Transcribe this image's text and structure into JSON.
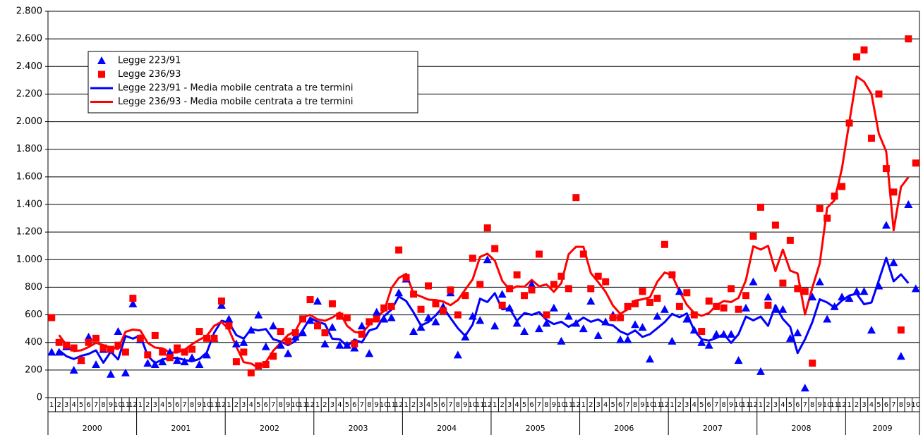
{
  "chart_data": {
    "type": "line",
    "categories": [
      "1",
      "2",
      "3",
      "4",
      "5",
      "6",
      "7",
      "8",
      "9",
      "10",
      "11",
      "12",
      "1",
      "2",
      "3",
      "4",
      "5",
      "6",
      "7",
      "8",
      "9",
      "10",
      "11",
      "12",
      "1",
      "2",
      "3",
      "4",
      "5",
      "6",
      "7",
      "8",
      "9",
      "10",
      "11",
      "12",
      "1",
      "2",
      "3",
      "4",
      "5",
      "6",
      "7",
      "8",
      "9",
      "10",
      "11",
      "12",
      "1",
      "2",
      "3",
      "4",
      "5",
      "6",
      "7",
      "8",
      "9",
      "10",
      "11",
      "12",
      "1",
      "2",
      "3",
      "4",
      "5",
      "6",
      "7",
      "8",
      "9",
      "10",
      "11",
      "12",
      "1",
      "2",
      "3",
      "4",
      "5",
      "6",
      "7",
      "8",
      "9",
      "10",
      "11",
      "12",
      "1",
      "2",
      "3",
      "4",
      "5",
      "6",
      "7",
      "8",
      "9",
      "10",
      "11",
      "12",
      "1",
      "2",
      "3",
      "4",
      "5",
      "6",
      "7",
      "8",
      "9",
      "10",
      "11",
      "12",
      "1",
      "2",
      "3",
      "4",
      "5",
      "6",
      "7",
      "8",
      "9",
      "10"
    ],
    "years": [
      "2000",
      "2001",
      "2002",
      "2003",
      "2004",
      "2005",
      "2006",
      "2007",
      "2008",
      "2009"
    ],
    "series": [
      {
        "name": "Legge 223/91",
        "kind": "marker",
        "marker": "triangle",
        "color": "#0000ff",
        "values": [
          330,
          330,
          370,
          200,
          270,
          440,
          240,
          350,
          170,
          480,
          180,
          680,
          420,
          250,
          240,
          260,
          330,
          270,
          260,
          290,
          240,
          310,
          430,
          670,
          570,
          390,
          400,
          490,
          600,
          370,
          520,
          380,
          320,
          440,
          470,
          560,
          700,
          390,
          510,
          380,
          380,
          360,
          520,
          320,
          620,
          570,
          580,
          760,
          860,
          480,
          510,
          580,
          550,
          660,
          760,
          310,
          440,
          590,
          560,
          1000,
          520,
          750,
          650,
          540,
          480,
          820,
          500,
          540,
          650,
          410,
          590,
          540,
          500,
          700,
          450,
          550,
          600,
          420,
          420,
          530,
          510,
          280,
          590,
          640,
          410,
          770,
          570,
          490,
          400,
          380,
          460,
          460,
          460,
          270,
          650,
          840,
          190,
          730,
          640,
          640,
          430,
          470,
          70,
          730,
          840,
          570,
          660,
          730,
          720,
          770,
          770,
          490,
          810,
          1250,
          980,
          300,
          1400,
          790
        ]
      },
      {
        "name": "Legge 236/93",
        "kind": "marker",
        "marker": "square",
        "color": "#ff0000",
        "values": [
          580,
          400,
          380,
          360,
          270,
          400,
          430,
          360,
          350,
          380,
          330,
          720,
          430,
          310,
          450,
          330,
          290,
          360,
          330,
          350,
          480,
          430,
          430,
          700,
          520,
          260,
          330,
          180,
          230,
          240,
          300,
          480,
          410,
          470,
          570,
          710,
          520,
          470,
          680,
          590,
          580,
          390,
          460,
          550,
          570,
          650,
          660,
          1070,
          870,
          750,
          640,
          810,
          680,
          630,
          780,
          600,
          740,
          1010,
          820,
          1230,
          1080,
          670,
          790,
          890,
          740,
          780,
          1040,
          600,
          820,
          880,
          790,
          1450,
          1040,
          790,
          880,
          840,
          580,
          580,
          660,
          680,
          770,
          690,
          720,
          1110,
          890,
          660,
          760,
          600,
          480,
          700,
          660,
          650,
          790,
          640,
          740,
          1170,
          1380,
          670,
          1250,
          830,
          1140,
          790,
          770,
          250,
          1370,
          1300,
          1460,
          1530,
          1990,
          2470,
          2520,
          1880,
          2200,
          1660,
          1490,
          490,
          2600,
          1700
        ]
      },
      {
        "name": "Legge 223/91 - Media mobile centrata a tre termini",
        "kind": "line",
        "color": "#0000ff",
        "values": [
          null,
          343,
          300,
          280,
          303,
          317,
          343,
          253,
          333,
          277,
          447,
          427,
          450,
          303,
          250,
          277,
          287,
          287,
          273,
          263,
          280,
          327,
          470,
          557,
          543,
          453,
          427,
          497,
          487,
          497,
          423,
          407,
          380,
          410,
          490,
          577,
          550,
          533,
          427,
          423,
          373,
          420,
          400,
          487,
          503,
          590,
          637,
          733,
          700,
          617,
          523,
          547,
          597,
          657,
          577,
          503,
          447,
          530,
          717,
          693,
          757,
          640,
          647,
          557,
          613,
          600,
          620,
          563,
          533,
          550,
          513,
          543,
          580,
          550,
          567,
          533,
          523,
          480,
          457,
          487,
          440,
          460,
          503,
          547,
          607,
          583,
          610,
          487,
          423,
          413,
          433,
          460,
          397,
          460,
          587,
          560,
          587,
          520,
          670,
          570,
          513,
          323,
          423,
          547,
          713,
          690,
          653,
          703,
          740,
          753,
          677,
          690,
          850,
          1013,
          843,
          893,
          830,
          null
        ]
      },
      {
        "name": "Legge 236/93 - Media mobile centrata a tre termini",
        "kind": "line",
        "color": "#ff0000",
        "values": [
          null,
          453,
          380,
          337,
          343,
          367,
          397,
          380,
          363,
          353,
          477,
          493,
          487,
          397,
          363,
          357,
          327,
          327,
          347,
          387,
          420,
          447,
          520,
          550,
          493,
          370,
          257,
          247,
          217,
          257,
          340,
          397,
          453,
          483,
          583,
          600,
          567,
          557,
          580,
          617,
          520,
          477,
          467,
          527,
          590,
          627,
          793,
          867,
          897,
          753,
          733,
          710,
          707,
          697,
          670,
          707,
          783,
          857,
          1020,
          1043,
          993,
          847,
          783,
          807,
          803,
          853,
          807,
          820,
          767,
          830,
          1040,
          1093,
          1093,
          903,
          837,
          767,
          667,
          607,
          640,
          703,
          713,
          727,
          840,
          907,
          887,
          770,
          673,
          613,
          593,
          613,
          670,
          700,
          693,
          723,
          850,
          1097,
          1073,
          1100,
          917,
          1073,
          920,
          900,
          603,
          797,
          973,
          1377,
          1430,
          1660,
          1997,
          2327,
          2290,
          2200,
          1913,
          1783,
          1213,
          1527,
          1597,
          null
        ]
      }
    ],
    "ylim": [
      0,
      2800
    ],
    "yticks": [
      0,
      200,
      400,
      600,
      800,
      {
        "value": 1000,
        "label": "1.000"
      },
      {
        "value": 1200,
        "label": "1.200"
      },
      {
        "value": 1400,
        "label": "1.400"
      },
      {
        "value": 1600,
        "label": "1.600"
      },
      {
        "value": 1800,
        "label": "1.800"
      },
      {
        "value": 2000,
        "label": "2.000"
      },
      {
        "value": 2200,
        "label": "2.200"
      },
      {
        "value": 2400,
        "label": "2.400"
      },
      {
        "value": 2600,
        "label": "2.600"
      },
      {
        "value": 2800,
        "label": "2.800"
      }
    ],
    "grid": true
  }
}
